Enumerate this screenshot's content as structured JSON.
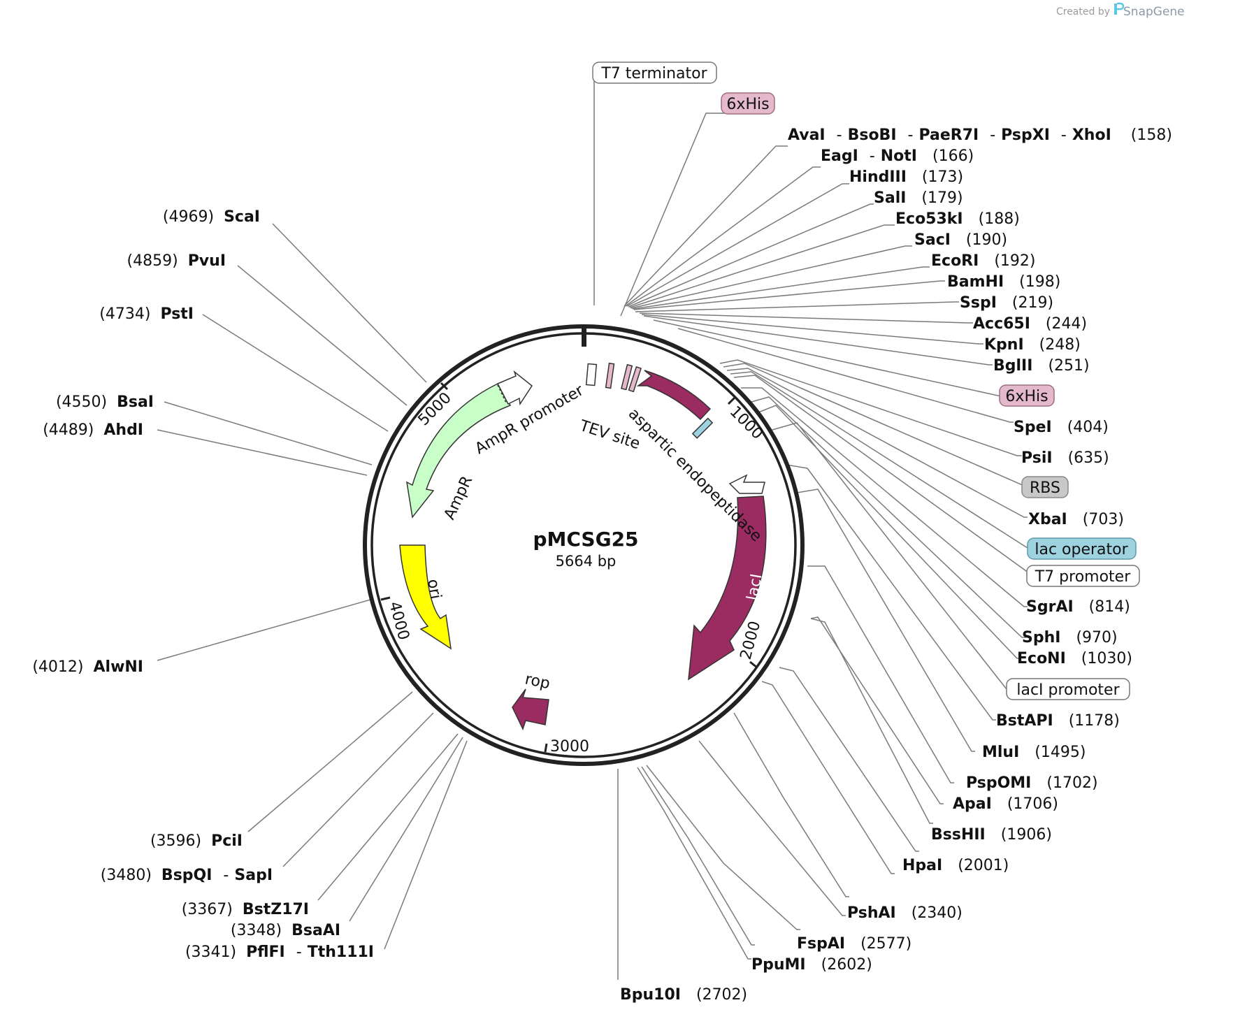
{
  "credit": {
    "created_by": "Created by",
    "brand": "SnapGene",
    "logo_icon": "snapgene-logo-icon"
  },
  "plasmid": {
    "name": "pMCSG25",
    "length": "5664 bp"
  },
  "ticks": [
    "1000",
    "2000",
    "3000",
    "4000",
    "5000"
  ],
  "features": {
    "ampr": "AmpR",
    "ampr_promoter": "AmpR promoter",
    "tev": "TEV site",
    "asp": "aspartic endopeptidase",
    "laci": "lacI",
    "ori": "ori",
    "rop": "rop"
  },
  "boxed_features": {
    "t7_terminator": "T7 terminator",
    "his_top": "6xHis",
    "his_right": "6xHis",
    "rbs": "RBS",
    "lac_operator": "lac operator",
    "t7_promoter": "T7 promoter",
    "laci_promoter": "lacI promoter"
  },
  "sites": {
    "ava": {
      "names": [
        "AvaI",
        "BsoBI",
        "PaeR7I",
        "PspXI",
        "XhoI"
      ],
      "pos": "(158)"
    },
    "eag": {
      "names": [
        "EagI",
        "NotI"
      ],
      "pos": "(166)"
    },
    "hind": {
      "names": [
        "HindIII"
      ],
      "pos": "(173)"
    },
    "sal": {
      "names": [
        "SalI"
      ],
      "pos": "(179)"
    },
    "eco53": {
      "names": [
        "Eco53kI"
      ],
      "pos": "(188)"
    },
    "sac": {
      "names": [
        "SacI"
      ],
      "pos": "(190)"
    },
    "ecori": {
      "names": [
        "EcoRI"
      ],
      "pos": "(192)"
    },
    "bam": {
      "names": [
        "BamHI"
      ],
      "pos": "(198)"
    },
    "ssp": {
      "names": [
        "SspI"
      ],
      "pos": "(219)"
    },
    "acc": {
      "names": [
        "Acc65I"
      ],
      "pos": "(244)"
    },
    "kpn": {
      "names": [
        "KpnI"
      ],
      "pos": "(248)"
    },
    "bgl": {
      "names": [
        "BglII"
      ],
      "pos": "(251)"
    },
    "spe": {
      "names": [
        "SpeI"
      ],
      "pos": "(404)"
    },
    "psi": {
      "names": [
        "PsiI"
      ],
      "pos": "(635)"
    },
    "xba": {
      "names": [
        "XbaI"
      ],
      "pos": "(703)"
    },
    "sgr": {
      "names": [
        "SgrAI"
      ],
      "pos": "(814)"
    },
    "sph": {
      "names": [
        "SphI"
      ],
      "pos": "(970)"
    },
    "econ": {
      "names": [
        "EcoNI"
      ],
      "pos": "(1030)"
    },
    "bstap": {
      "names": [
        "BstAPI"
      ],
      "pos": "(1178)"
    },
    "mlu": {
      "names": [
        "MluI"
      ],
      "pos": "(1495)"
    },
    "pspom": {
      "names": [
        "PspOMI"
      ],
      "pos": "(1702)"
    },
    "apa": {
      "names": [
        "ApaI"
      ],
      "pos": "(1706)"
    },
    "bsshii": {
      "names": [
        "BssHII"
      ],
      "pos": "(1906)"
    },
    "hpa": {
      "names": [
        "HpaI"
      ],
      "pos": "(2001)"
    },
    "psha": {
      "names": [
        "PshAI"
      ],
      "pos": "(2340)"
    },
    "fspa": {
      "names": [
        "FspAI"
      ],
      "pos": "(2577)"
    },
    "ppum": {
      "names": [
        "PpuMI"
      ],
      "pos": "(2602)"
    },
    "bpu": {
      "names": [
        "Bpu10I"
      ],
      "pos": "(2702)"
    },
    "pfl": {
      "names": [
        "PflFI",
        "Tth111I"
      ],
      "pos": "(3341)"
    },
    "bsaa": {
      "names": [
        "BsaAI"
      ],
      "pos": "(3348)"
    },
    "bstz": {
      "names": [
        "BstZ17I"
      ],
      "pos": "(3367)"
    },
    "bspq": {
      "names": [
        "BspQI",
        "SapI"
      ],
      "pos": "(3480)"
    },
    "pci": {
      "names": [
        "PciI"
      ],
      "pos": "(3596)"
    },
    "alwn": {
      "names": [
        "AlwNI"
      ],
      "pos": "(4012)"
    },
    "ahd": {
      "names": [
        "AhdI"
      ],
      "pos": "(4489)"
    },
    "bsa": {
      "names": [
        "BsaI"
      ],
      "pos": "(4550)"
    },
    "pst": {
      "names": [
        "PstI"
      ],
      "pos": "(4734)"
    },
    "pvu": {
      "names": [
        "PvuI"
      ],
      "pos": "(4859)"
    },
    "sca": {
      "names": [
        "ScaI"
      ],
      "pos": "(4969)"
    }
  },
  "colors": {
    "maroon": "#9b2c62",
    "ampr_green": "#c8ffc8",
    "ori_yellow": "#ffff00",
    "his_pink": "#e4b9cc",
    "rbs_gray": "#c8c8c8",
    "lac_op_blue": "#9fd2df"
  }
}
